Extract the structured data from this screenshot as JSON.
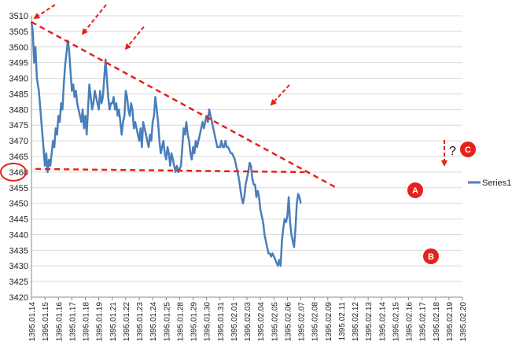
{
  "chart_data": {
    "type": "line",
    "title": "",
    "xlabel": "",
    "ylabel": "",
    "ylim": [
      3420,
      3510
    ],
    "yticks": [
      3420,
      3425,
      3430,
      3435,
      3440,
      3445,
      3450,
      3455,
      3460,
      3465,
      3470,
      3475,
      3480,
      3485,
      3490,
      3495,
      3500,
      3505,
      3510
    ],
    "categories": [
      "1395.01.14",
      "1395.01.15",
      "1395.01.16",
      "1395.01.17",
      "1395.01.18",
      "1395.01.19",
      "1395.01.21",
      "1395.01.22",
      "1395.01.23",
      "1395.01.24",
      "1395.01.25",
      "1395.01.28",
      "1395.01.29",
      "1395.01.30",
      "1395.01.31",
      "1395.02.01",
      "1395.02.03",
      "1395.02.04",
      "1395.02.05",
      "1395.02.06",
      "1395.02.07",
      "1395.02.08",
      "1395.02.09",
      "1395.02.11",
      "1395.02.12",
      "1395.02.13",
      "1395.02.14",
      "1395.02.15",
      "1395.02.16",
      "1395.02.17",
      "1395.02.18",
      "1395.02.19",
      "1395.02.20"
    ],
    "grid": "horizontal",
    "legend_position": "right",
    "series": [
      {
        "name": "Series1",
        "color": "#4a7ebb",
        "points": [
          [
            0,
            3508
          ],
          [
            0.1,
            3505
          ],
          [
            0.2,
            3495
          ],
          [
            0.3,
            3500
          ],
          [
            0.4,
            3490
          ],
          [
            0.55,
            3486
          ],
          [
            0.7,
            3478
          ],
          [
            0.85,
            3470
          ],
          [
            1.0,
            3462
          ],
          [
            1.1,
            3466
          ],
          [
            1.2,
            3460
          ],
          [
            1.3,
            3464
          ],
          [
            1.4,
            3462
          ],
          [
            1.5,
            3466
          ],
          [
            1.6,
            3470
          ],
          [
            1.7,
            3468
          ],
          [
            1.8,
            3474
          ],
          [
            1.9,
            3472
          ],
          [
            2.0,
            3478
          ],
          [
            2.1,
            3476
          ],
          [
            2.2,
            3482
          ],
          [
            2.3,
            3480
          ],
          [
            2.4,
            3488
          ],
          [
            2.5,
            3494
          ],
          [
            2.6,
            3498
          ],
          [
            2.7,
            3502
          ],
          [
            2.8,
            3499
          ],
          [
            2.9,
            3492
          ],
          [
            3.0,
            3486
          ],
          [
            3.1,
            3488
          ],
          [
            3.2,
            3484
          ],
          [
            3.3,
            3486
          ],
          [
            3.4,
            3482
          ],
          [
            3.5,
            3480
          ],
          [
            3.6,
            3478
          ],
          [
            3.7,
            3476
          ],
          [
            3.8,
            3480
          ],
          [
            3.9,
            3474
          ],
          [
            4.0,
            3478
          ],
          [
            4.1,
            3472
          ],
          [
            4.2,
            3480
          ],
          [
            4.3,
            3488
          ],
          [
            4.4,
            3484
          ],
          [
            4.5,
            3480
          ],
          [
            4.6,
            3482
          ],
          [
            4.7,
            3486
          ],
          [
            4.8,
            3484
          ],
          [
            4.9,
            3482
          ],
          [
            5.0,
            3480
          ],
          [
            5.1,
            3486
          ],
          [
            5.2,
            3482
          ],
          [
            5.3,
            3484
          ],
          [
            5.4,
            3490
          ],
          [
            5.5,
            3496
          ],
          [
            5.6,
            3490
          ],
          [
            5.7,
            3484
          ],
          [
            5.8,
            3480
          ],
          [
            5.9,
            3482
          ],
          [
            6.0,
            3482
          ],
          [
            6.1,
            3484
          ],
          [
            6.2,
            3480
          ],
          [
            6.3,
            3482
          ],
          [
            6.4,
            3478
          ],
          [
            6.5,
            3480
          ],
          [
            6.6,
            3476
          ],
          [
            6.7,
            3472
          ],
          [
            6.8,
            3476
          ],
          [
            6.9,
            3478
          ],
          [
            7.0,
            3486
          ],
          [
            7.1,
            3484
          ],
          [
            7.2,
            3480
          ],
          [
            7.3,
            3478
          ],
          [
            7.4,
            3482
          ],
          [
            7.5,
            3480
          ],
          [
            7.6,
            3474
          ],
          [
            7.7,
            3476
          ],
          [
            7.8,
            3474
          ],
          [
            7.9,
            3472
          ],
          [
            8.0,
            3470
          ],
          [
            8.1,
            3474
          ],
          [
            8.2,
            3468
          ],
          [
            8.3,
            3476
          ],
          [
            8.4,
            3474
          ],
          [
            8.5,
            3472
          ],
          [
            8.6,
            3470
          ],
          [
            8.7,
            3468
          ],
          [
            8.8,
            3472
          ],
          [
            8.9,
            3470
          ],
          [
            9.0,
            3476
          ],
          [
            9.1,
            3478
          ],
          [
            9.2,
            3484
          ],
          [
            9.3,
            3480
          ],
          [
            9.4,
            3476
          ],
          [
            9.5,
            3470
          ],
          [
            9.6,
            3466
          ],
          [
            9.7,
            3468
          ],
          [
            9.8,
            3470
          ],
          [
            9.9,
            3466
          ],
          [
            10.0,
            3464
          ],
          [
            10.1,
            3468
          ],
          [
            10.2,
            3466
          ],
          [
            10.3,
            3462
          ],
          [
            10.4,
            3466
          ],
          [
            10.5,
            3464
          ],
          [
            10.6,
            3462
          ],
          [
            10.7,
            3460
          ],
          [
            10.8,
            3462
          ],
          [
            10.9,
            3460
          ],
          [
            11.0,
            3461
          ],
          [
            11.1,
            3462
          ],
          [
            11.2,
            3468
          ],
          [
            11.3,
            3474
          ],
          [
            11.4,
            3472
          ],
          [
            11.5,
            3476
          ],
          [
            11.6,
            3472
          ],
          [
            11.7,
            3470
          ],
          [
            11.8,
            3466
          ],
          [
            11.9,
            3464
          ],
          [
            12.0,
            3468
          ],
          [
            12.1,
            3466
          ],
          [
            12.2,
            3470
          ],
          [
            12.3,
            3468
          ],
          [
            12.4,
            3470
          ],
          [
            12.5,
            3472
          ],
          [
            12.6,
            3474
          ],
          [
            12.7,
            3476
          ],
          [
            12.8,
            3474
          ],
          [
            12.9,
            3476
          ],
          [
            13.0,
            3478
          ],
          [
            13.1,
            3476
          ],
          [
            13.2,
            3480
          ],
          [
            13.3,
            3478
          ],
          [
            13.4,
            3476
          ],
          [
            13.5,
            3474
          ],
          [
            13.6,
            3472
          ],
          [
            13.7,
            3470
          ],
          [
            13.8,
            3468
          ],
          [
            13.9,
            3468
          ],
          [
            14.0,
            3468
          ],
          [
            14.1,
            3470
          ],
          [
            14.2,
            3468
          ],
          [
            14.3,
            3468
          ],
          [
            14.4,
            3470
          ],
          [
            14.5,
            3468
          ],
          [
            14.6,
            3468
          ],
          [
            14.7,
            3467
          ],
          [
            14.8,
            3466
          ],
          [
            14.9,
            3466
          ],
          [
            15.0,
            3465
          ],
          [
            15.1,
            3464
          ],
          [
            15.2,
            3462
          ],
          [
            15.3,
            3460
          ],
          [
            15.4,
            3458
          ],
          [
            15.5,
            3455
          ],
          [
            15.6,
            3452
          ],
          [
            15.7,
            3450
          ],
          [
            15.8,
            3452
          ],
          [
            15.9,
            3456
          ],
          [
            16.0,
            3458
          ],
          [
            16.1,
            3460
          ],
          [
            16.2,
            3463
          ],
          [
            16.3,
            3462
          ],
          [
            16.4,
            3458
          ],
          [
            16.5,
            3456
          ],
          [
            16.6,
            3456
          ],
          [
            16.7,
            3452
          ],
          [
            16.8,
            3454
          ],
          [
            16.9,
            3452
          ],
          [
            17.0,
            3448
          ],
          [
            17.1,
            3446
          ],
          [
            17.2,
            3444
          ],
          [
            17.3,
            3440
          ],
          [
            17.4,
            3438
          ],
          [
            17.5,
            3436
          ],
          [
            17.6,
            3434
          ],
          [
            17.7,
            3434
          ],
          [
            17.8,
            3433
          ],
          [
            17.9,
            3434
          ],
          [
            18.0,
            3433
          ],
          [
            18.1,
            3432
          ],
          [
            18.2,
            3431
          ],
          [
            18.3,
            3430
          ],
          [
            18.4,
            3432
          ],
          [
            18.5,
            3430
          ],
          [
            18.6,
            3438
          ],
          [
            18.7,
            3442
          ],
          [
            18.8,
            3445
          ],
          [
            18.9,
            3444
          ],
          [
            19.0,
            3446
          ],
          [
            19.1,
            3452
          ],
          [
            19.2,
            3444
          ],
          [
            19.3,
            3440
          ],
          [
            19.4,
            3438
          ],
          [
            19.5,
            3436
          ],
          [
            19.6,
            3442
          ],
          [
            19.7,
            3450
          ],
          [
            19.8,
            3453
          ],
          [
            19.9,
            3452
          ],
          [
            20.0,
            3450
          ]
        ]
      }
    ],
    "annotations": {
      "resistance_trend": {
        "from": [
          0,
          3508
        ],
        "to": [
          20.6,
          3457
        ],
        "color": "#e8201a",
        "style": "dashed"
      },
      "support_line": {
        "from": [
          0.3,
          3461
        ],
        "to": [
          20.3,
          3460
        ],
        "color": "#e8201a",
        "style": "dashed"
      },
      "marker_3460": {
        "value": 3460,
        "color": "#e8201a"
      },
      "point_labels": [
        {
          "label": "A",
          "x": 19.1,
          "y": 3453
        },
        {
          "label": "B",
          "x": 19.4,
          "y": 3431
        },
        {
          "label": "C",
          "x": 20.3,
          "y": 3467
        }
      ],
      "question_mark": "?"
    }
  }
}
